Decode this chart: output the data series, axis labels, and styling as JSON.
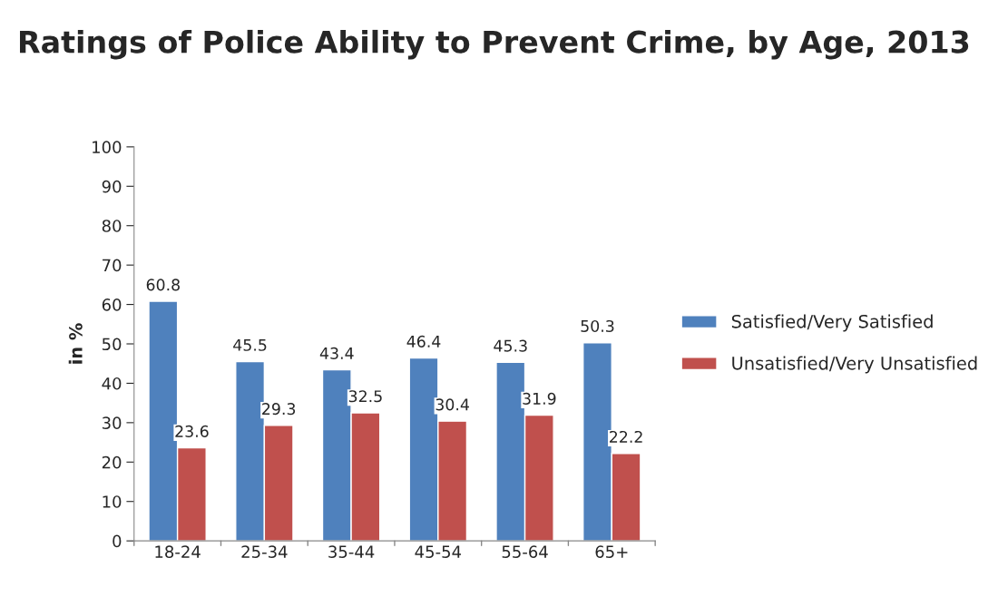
{
  "chart_data": {
    "type": "bar",
    "title": "Ratings of Police Ability to Prevent Crime, by Age, 2013",
    "ylabel": "in %",
    "categories": [
      "18-24",
      "25-34",
      "35-44",
      "45-54",
      "55-64",
      "65+"
    ],
    "series": [
      {
        "name": "Satisfied/Very Satisfied",
        "color": "#4f81bd",
        "values": [
          60.8,
          45.5,
          43.4,
          46.4,
          45.3,
          50.3
        ]
      },
      {
        "name": "Unsatisfied/Very Unsatisfied",
        "color": "#c0504d",
        "values": [
          23.6,
          29.3,
          32.5,
          30.4,
          31.9,
          22.2
        ]
      }
    ],
    "ylim": [
      0,
      100
    ],
    "yticks": [
      0,
      10,
      20,
      30,
      40,
      50,
      60,
      70,
      80,
      90,
      100
    ],
    "grid": false,
    "legend": "right",
    "data_labels": true
  }
}
